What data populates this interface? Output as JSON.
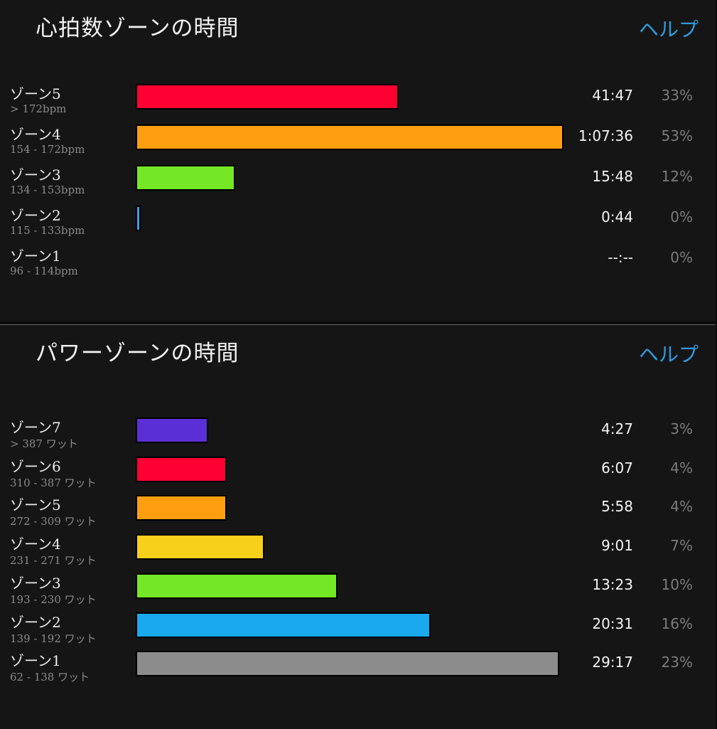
{
  "hr_section": {
    "title": "心拍数ゾーンの時間",
    "help_label": "ヘルプ",
    "zones": [
      {
        "name": "ゾーン5",
        "range": "> 172bpm",
        "time": "41:47",
        "percent": "33%",
        "color": "#ff0033",
        "bar_fraction": 0.615
      },
      {
        "name": "ゾーン4",
        "range": "154 - 172bpm",
        "time": "1:07:36",
        "percent": "53%",
        "color": "#ff9f10",
        "bar_fraction": 1.0
      },
      {
        "name": "ゾーン3",
        "range": "134 - 153bpm",
        "time": "15:48",
        "percent": "12%",
        "color": "#74e824",
        "bar_fraction": 0.232
      },
      {
        "name": "ゾーン2",
        "range": "115 - 133bpm",
        "time": "0:44",
        "percent": "0%",
        "color": "#2fa3f0",
        "bar_fraction": 0.011
      },
      {
        "name": "ゾーン1",
        "range": "96 - 114bpm",
        "time": "--:--",
        "percent": "0%",
        "color": "#8c8c8c",
        "bar_fraction": 0
      }
    ]
  },
  "power_section": {
    "title": "パワーゾーンの時間",
    "help_label": "ヘルプ",
    "zones": [
      {
        "name": "ゾーン7",
        "range": "> 387 ワット",
        "time": "4:27",
        "percent": "3%",
        "color": "#5b2fd6",
        "bar_fraction": 0.171
      },
      {
        "name": "ゾーン6",
        "range": "310 - 387 ワット",
        "time": "6:07",
        "percent": "4%",
        "color": "#ff0033",
        "bar_fraction": 0.215
      },
      {
        "name": "ゾーン5",
        "range": "272 - 309 ワット",
        "time": "5:58",
        "percent": "4%",
        "color": "#ff9f10",
        "bar_fraction": 0.215
      },
      {
        "name": "ゾーン4",
        "range": "231 - 271 ワット",
        "time": "9:01",
        "percent": "7%",
        "color": "#f7d01b",
        "bar_fraction": 0.303
      },
      {
        "name": "ゾーン3",
        "range": "193 - 230 ワット",
        "time": "13:23",
        "percent": "10%",
        "color": "#74e824",
        "bar_fraction": 0.477
      },
      {
        "name": "ゾーン2",
        "range": "139 - 192 ワット",
        "time": "20:31",
        "percent": "16%",
        "color": "#1aa8ef",
        "bar_fraction": 0.697
      },
      {
        "name": "ゾーン1",
        "range": "62 - 138 ワット",
        "time": "29:17",
        "percent": "23%",
        "color": "#8c8c8c",
        "bar_fraction": 1.0
      }
    ]
  }
}
